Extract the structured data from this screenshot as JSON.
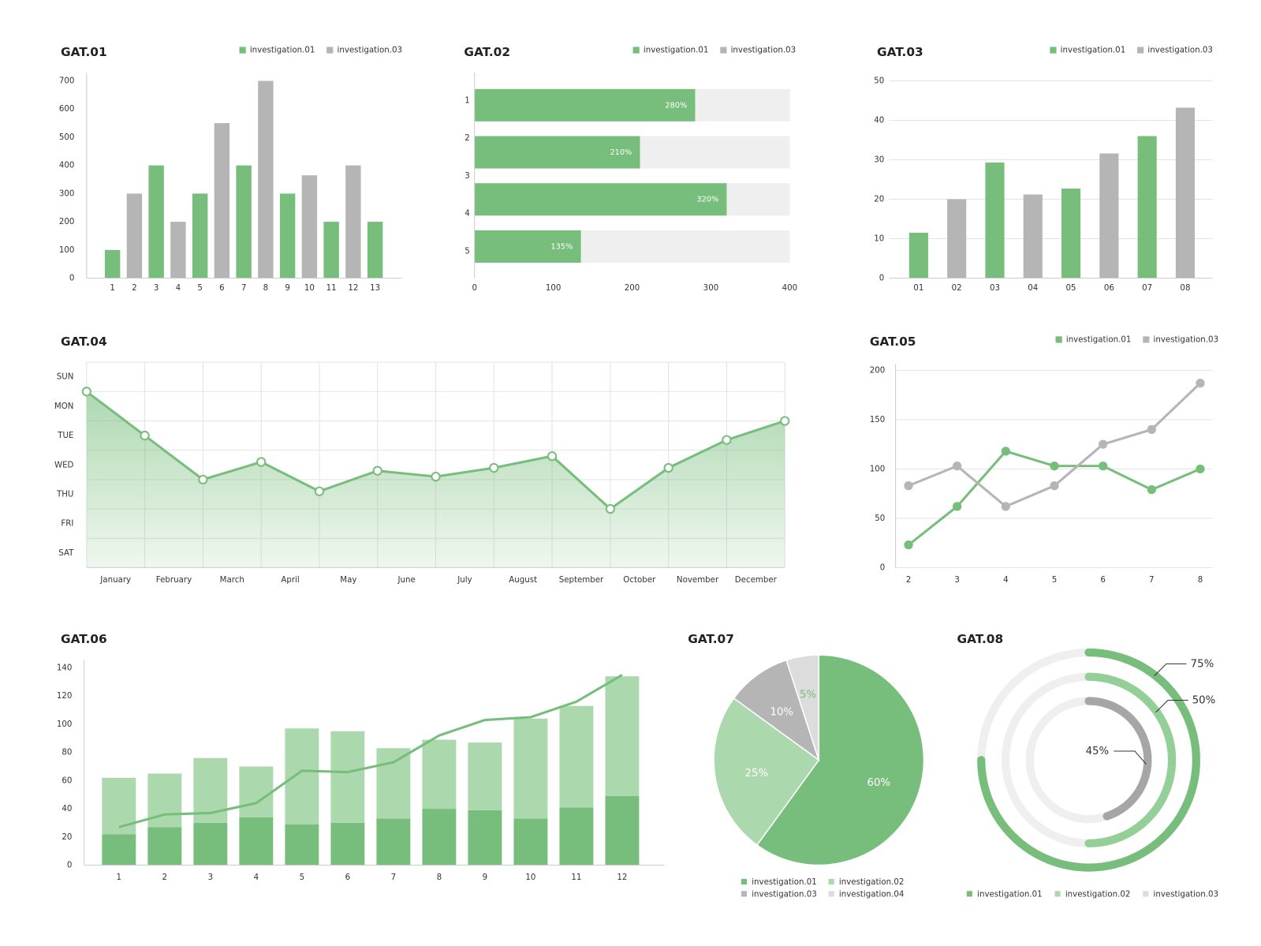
{
  "chart_data": [
    {
      "type": "bar",
      "title": "GAT.01",
      "categories": [
        "1",
        "2",
        "3",
        "4",
        "5",
        "6",
        "7",
        "8",
        "9",
        "10",
        "11",
        "12",
        "13"
      ],
      "series": [
        {
          "name": "investigation.01",
          "color": "#77be7c",
          "values": [
            100,
            null,
            400,
            null,
            300,
            null,
            400,
            null,
            300,
            null,
            200,
            null,
            200
          ]
        },
        {
          "name": "investigation.03",
          "color": "#b5b5b5",
          "values": [
            null,
            300,
            null,
            200,
            null,
            550,
            null,
            700,
            null,
            365,
            null,
            400,
            null
          ]
        }
      ],
      "ylim": [
        0,
        700
      ],
      "yticks": [
        0,
        100,
        200,
        300,
        400,
        500,
        600,
        700
      ],
      "grid": false,
      "legend": "top-right"
    },
    {
      "type": "hbar",
      "title": "GAT.02",
      "categories": [
        "1",
        "2",
        "3",
        "4",
        "5"
      ],
      "values": [
        280,
        210,
        320,
        135,
        null
      ],
      "value_labels": [
        "280%",
        "210%",
        "320%",
        "135%",
        null
      ],
      "color": "#77be7c",
      "track_color": "#efefef",
      "xlim": [
        0,
        400
      ],
      "xticks": [
        0,
        100,
        200,
        300,
        400
      ],
      "legend_items": [
        {
          "name": "investigation.01",
          "color": "#77be7c"
        },
        {
          "name": "investigation.03",
          "color": "#b5b5b5"
        }
      ],
      "legend": "top-right"
    },
    {
      "type": "bar",
      "title": "GAT.03",
      "categories": [
        "01",
        "02",
        "03",
        "04",
        "05",
        "06",
        "07",
        "08"
      ],
      "series": [
        {
          "name": "investigation.01",
          "color": "#77be7c",
          "values": [
            11.5,
            null,
            29.3,
            null,
            22.7,
            null,
            36,
            null
          ]
        },
        {
          "name": "investigation.03",
          "color": "#b5b5b5",
          "values": [
            null,
            20,
            null,
            21.2,
            null,
            31.6,
            null,
            43.2
          ]
        }
      ],
      "ylim": [
        0,
        50
      ],
      "yticks": [
        0,
        10,
        20,
        30,
        40,
        50
      ],
      "grid": true,
      "legend": "top-right"
    },
    {
      "type": "area",
      "title": "GAT.04",
      "x": [
        0,
        1,
        2,
        3,
        4,
        5,
        6,
        7,
        8,
        9,
        10,
        11,
        12
      ],
      "values": [
        6.0,
        4.5,
        3.0,
        3.6,
        2.6,
        3.3,
        3.1,
        3.4,
        3.8,
        2.0,
        3.4,
        4.35,
        5.0
      ],
      "color": "#77be7c",
      "xlim": [
        0,
        12
      ],
      "xticks": [
        {
          "value": 0.5,
          "label": "January"
        },
        {
          "value": 1.5,
          "label": "February"
        },
        {
          "value": 2.5,
          "label": "March"
        },
        {
          "value": 3.5,
          "label": "April"
        },
        {
          "value": 4.5,
          "label": "May"
        },
        {
          "value": 5.5,
          "label": "June"
        },
        {
          "value": 6.5,
          "label": "July"
        },
        {
          "value": 7.5,
          "label": "August"
        },
        {
          "value": 8.5,
          "label": "September"
        },
        {
          "value": 9.5,
          "label": "October"
        },
        {
          "value": 10.5,
          "label": "November"
        },
        {
          "value": 11.5,
          "label": "December"
        }
      ],
      "ylim": [
        0,
        7
      ],
      "yticks": [
        {
          "value": 6.5,
          "label": "SUN"
        },
        {
          "value": 5.5,
          "label": "MON"
        },
        {
          "value": 4.5,
          "label": "TUE"
        },
        {
          "value": 3.5,
          "label": "WED"
        },
        {
          "value": 2.5,
          "label": "THU"
        },
        {
          "value": 1.5,
          "label": "FRI"
        },
        {
          "value": 0.5,
          "label": "SAT"
        }
      ],
      "xgrid": [
        0,
        1,
        2,
        3,
        4,
        5,
        6,
        7,
        8,
        9,
        10,
        11,
        12
      ],
      "ygrid": [
        1,
        2,
        3,
        4,
        5,
        6,
        7
      ],
      "grid": true
    },
    {
      "type": "line",
      "title": "GAT.05",
      "x": [
        2,
        3,
        4,
        5,
        6,
        7,
        8
      ],
      "series": [
        {
          "name": "investigation.01",
          "color": "#77be7c",
          "values": [
            23,
            62,
            118,
            103,
            103,
            79,
            100
          ]
        },
        {
          "name": "investigation.03",
          "color": "#b5b5b5",
          "values": [
            83,
            103,
            62,
            83,
            125,
            140,
            187
          ]
        }
      ],
      "xlim": [
        2,
        8
      ],
      "xticks": [
        2,
        3,
        4,
        5,
        6,
        7,
        8
      ],
      "ylim": [
        0,
        200
      ],
      "yticks": [
        0,
        50,
        100,
        150,
        200
      ],
      "grid": true,
      "legend": "top-right"
    },
    {
      "type": "combo",
      "title": "GAT.06",
      "categories": [
        "1",
        "2",
        "3",
        "4",
        "5",
        "6",
        "7",
        "8",
        "9",
        "10",
        "11",
        "12"
      ],
      "stacked": true,
      "series": [
        {
          "type": "bar",
          "color": "#77be7c",
          "values": [
            22,
            27,
            30,
            34,
            29,
            30,
            33,
            40,
            39,
            33,
            41,
            49
          ]
        },
        {
          "type": "bar",
          "color": "#acd8ae",
          "values": [
            40,
            38,
            46,
            36,
            68,
            65,
            50,
            49,
            48,
            71,
            72,
            85
          ]
        },
        {
          "type": "line",
          "color": "#77be7c",
          "values": [
            27,
            36,
            37,
            44,
            67,
            66,
            73,
            92,
            103,
            105,
            116,
            135
          ]
        }
      ],
      "ylim": [
        0,
        140
      ],
      "yticks": [
        0,
        20,
        40,
        60,
        80,
        100,
        120,
        140
      ],
      "grid": false
    },
    {
      "type": "pie",
      "title": "GAT.07",
      "labels": [
        "investigation.01",
        "investigation.02",
        "investigation.03",
        "investigation.04"
      ],
      "values": [
        60,
        25,
        10,
        5
      ],
      "value_labels": [
        "60%",
        "25%",
        "10%",
        "5%"
      ],
      "colors": [
        "#77be7c",
        "#acd8ae",
        "#b5b5b6",
        "#dcdcdc"
      ],
      "label_colors": [
        "#ffffff",
        "#ffffff",
        "#ffffff",
        "#77be7c"
      ],
      "legend": "bottom"
    },
    {
      "type": "radial",
      "title": "GAT.08",
      "labels": [
        "investigation.01",
        "investigation.02",
        "investigation.03"
      ],
      "values": [
        75,
        50,
        45
      ],
      "value_labels": [
        "75%",
        "50%",
        "45%"
      ],
      "range": [
        0,
        100
      ],
      "colors": [
        "#77be7c",
        "#94cf98",
        "#a6a6a6"
      ],
      "legend_colors": [
        "#77be7c",
        "#acd8ae",
        "#dcdcdc"
      ],
      "track_color": "#efefef",
      "legend": "bottom"
    }
  ]
}
